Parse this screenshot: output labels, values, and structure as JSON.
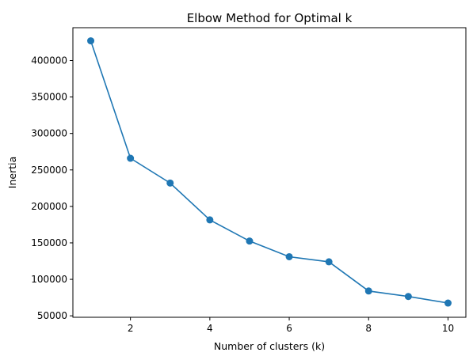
{
  "chart_data": {
    "type": "line",
    "title": "Elbow Method for Optimal k",
    "xlabel": "Number of clusters (k)",
    "ylabel": "Inertia",
    "x": [
      1,
      2,
      3,
      4,
      5,
      6,
      7,
      8,
      9,
      10
    ],
    "series": [
      {
        "values": [
          427000,
          266000,
          232000,
          181500,
          152500,
          131000,
          124000,
          84000,
          76500,
          67500
        ],
        "color": "#1f77b4",
        "marker": "circle"
      }
    ],
    "xticks": [
      2,
      4,
      6,
      8,
      10
    ],
    "yticks": [
      50000,
      100000,
      150000,
      200000,
      250000,
      300000,
      350000,
      400000
    ],
    "xlim": [
      0.55,
      10.45
    ],
    "ylim": [
      48000,
      445000
    ],
    "grid": false,
    "legend": "none"
  }
}
